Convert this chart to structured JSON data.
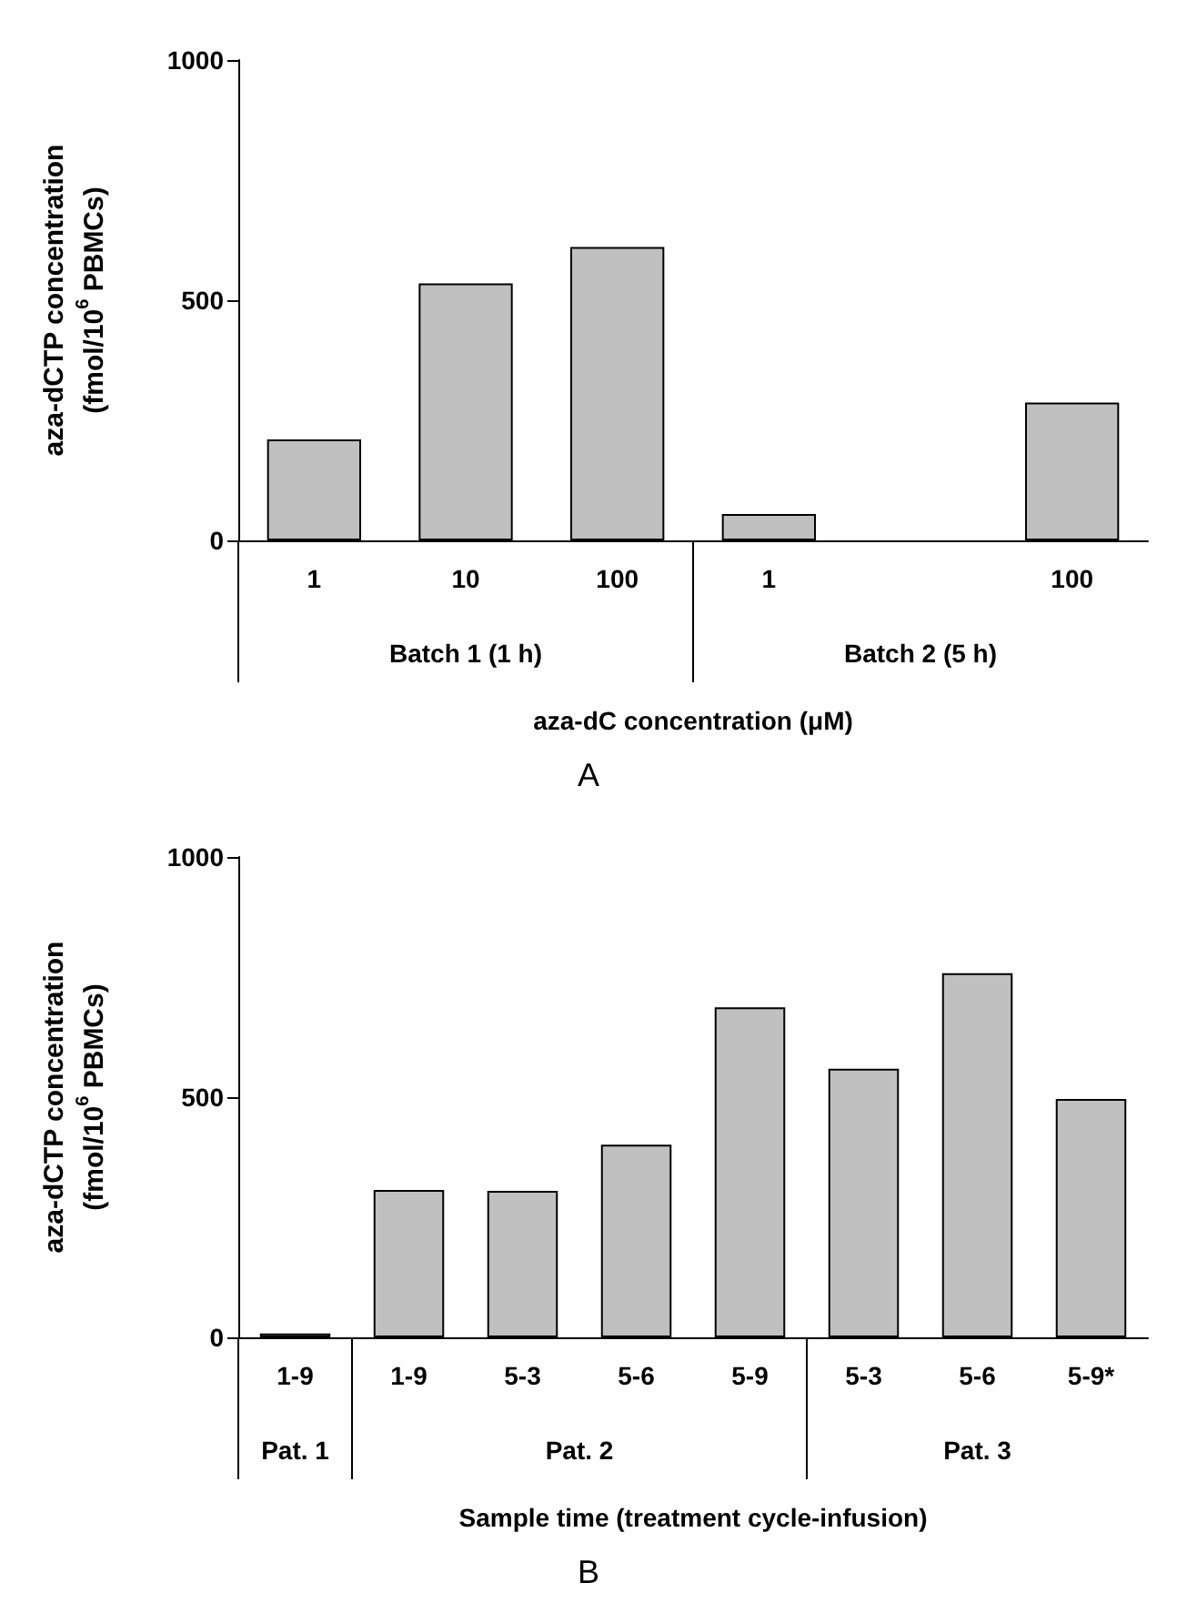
{
  "chart_data": [
    {
      "type": "bar",
      "title": "A",
      "ylabel": "aza-dCTP concentration\n(fmol/10$^{6}$ PBMCs)",
      "xlabel": "aza-dC concentration (μM)",
      "categories": [
        "1",
        "10",
        "100",
        "1",
        null,
        "100"
      ],
      "values": [
        210,
        535,
        611,
        55,
        null,
        287
      ],
      "color": "#c0c0c0",
      "ylim": [
        0,
        1000
      ],
      "yticks": [
        0,
        500,
        1000
      ],
      "annotations": [
        "Batch 1 (1 h)",
        "Batch 2 (5 h)"
      ]
    },
    {
      "type": "bar",
      "title": "B",
      "ylabel": "aza-dCTP concentration\n(fmol/10$^{6}$ PBMCs)",
      "xlabel": "Sample time (treatment cycle-infusion)",
      "categories": [
        "1-9",
        "1-9",
        "5-3",
        "5-6",
        "5-9",
        "5-3",
        "5-6",
        "5-9*"
      ],
      "values": [
        8,
        307,
        305,
        401,
        687,
        559,
        758,
        496
      ],
      "color": "#c0c0c0",
      "ylim": [
        0,
        1000
      ],
      "yticks": [
        0,
        500,
        1000
      ],
      "annotations": [
        "Pat. 1",
        "Pat. 2",
        "Pat. 3"
      ]
    }
  ]
}
